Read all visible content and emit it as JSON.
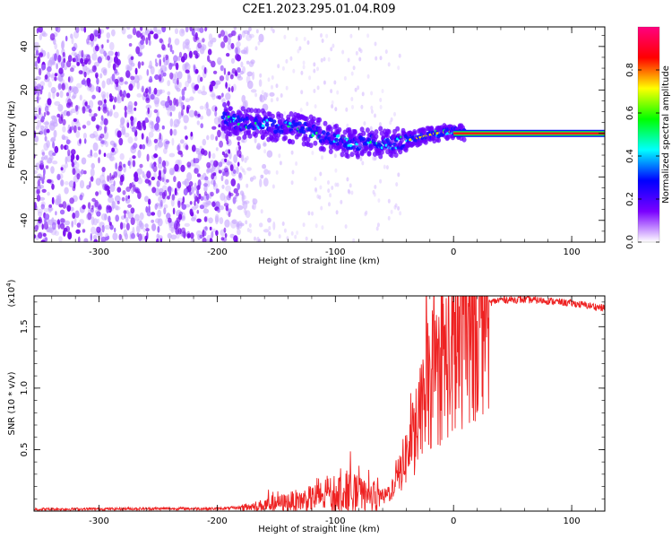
{
  "figure": {
    "title": "C2E1.2023.295.01.04.R09"
  },
  "chart_data": [
    {
      "type": "heatmap",
      "xlabel": "Height of straight line (km)",
      "ylabel": "Frequency (Hz)",
      "xlim": [
        -355,
        128
      ],
      "ylim": [
        -50,
        49
      ],
      "x_ticks": [
        -300,
        -200,
        -100,
        0,
        100
      ],
      "y_ticks": [
        -40,
        -20,
        0,
        20,
        40
      ],
      "colorbar": {
        "label": "Normalized spectral amplitude",
        "range": [
          0,
          1
        ],
        "ticks": [
          "0.0",
          "0.2",
          "0.4",
          "0.6",
          "0.8"
        ],
        "colors": [
          "#ffffff",
          "#7a00ff",
          "#0000ff",
          "#00ffff",
          "#00ff00",
          "#ffff00",
          "#ff0000",
          "#ff0080"
        ]
      },
      "features": {
        "noise_region_x": [
          -355,
          -180
        ],
        "signal_trace": [
          [
            -195,
            7
          ],
          [
            -180,
            5
          ],
          [
            -160,
            4
          ],
          [
            -140,
            3
          ],
          [
            -120,
            1
          ],
          [
            -100,
            -3
          ],
          [
            -85,
            -5
          ],
          [
            -70,
            -3
          ],
          [
            -55,
            -5
          ],
          [
            -45,
            -4
          ],
          [
            -30,
            -2
          ],
          [
            -15,
            0
          ],
          [
            0,
            1
          ],
          [
            10,
            0
          ],
          [
            128,
            0
          ]
        ],
        "saturated_line_x": [
          0,
          128
        ],
        "saturated_line_y": 0
      }
    },
    {
      "type": "line",
      "xlabel": "Height of straight line (km)",
      "ylabel": "SNR (10 * v/v)",
      "y_multiplier_label": "(x10",
      "y_multiplier_exp": "4",
      "y_multiplier_close": ")",
      "xlim": [
        -355,
        128
      ],
      "ylim": [
        0,
        1.75
      ],
      "x_ticks": [
        -300,
        -200,
        -100,
        0,
        100
      ],
      "y_ticks": [
        "0.5",
        "1.0",
        "1.5"
      ],
      "series": [
        {
          "color": "#ee2222",
          "envelope": [
            [
              -355,
              0.015
            ],
            [
              -250,
              0.02
            ],
            [
              -200,
              0.02
            ],
            [
              -175,
              0.03
            ],
            [
              -150,
              0.06
            ],
            [
              -120,
              0.1
            ],
            [
              -100,
              0.14
            ],
            [
              -90,
              0.16
            ],
            [
              -75,
              0.12
            ],
            [
              -60,
              0.1
            ],
            [
              -50,
              0.2
            ],
            [
              -40,
              0.45
            ],
            [
              -30,
              0.7
            ],
            [
              -20,
              1.05
            ],
            [
              -10,
              1.2
            ],
            [
              0,
              1.3
            ],
            [
              10,
              1.5
            ],
            [
              25,
              1.68
            ],
            [
              40,
              1.72
            ],
            [
              60,
              1.72
            ],
            [
              80,
              1.71
            ],
            [
              100,
              1.69
            ],
            [
              115,
              1.67
            ],
            [
              128,
              1.65
            ]
          ]
        }
      ]
    }
  ]
}
